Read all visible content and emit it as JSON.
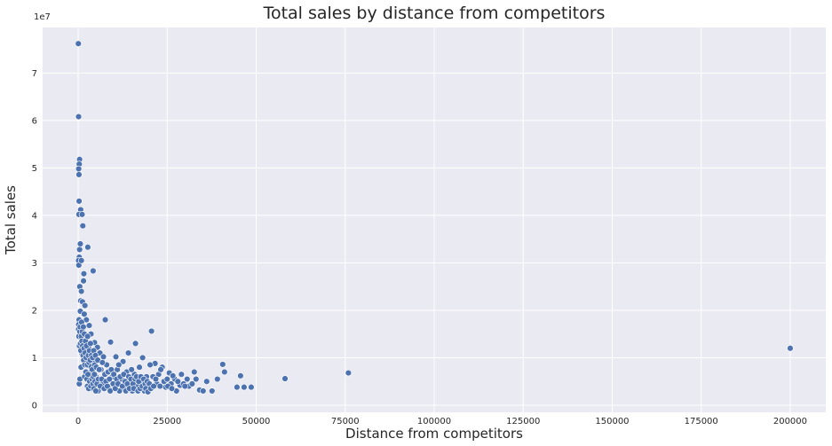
{
  "chart_data": {
    "type": "scatter",
    "title": "Total sales by distance from competitors",
    "xlabel": "Distance from competitors",
    "ylabel": "Total sales",
    "y_offset_label": "1e7",
    "xlim": [
      -9990,
      209990
    ],
    "ylim": [
      -0.15,
      7.96
    ],
    "y_unit_multiplier": 10000000,
    "xticks": [
      0,
      25000,
      50000,
      75000,
      100000,
      125000,
      150000,
      175000,
      200000
    ],
    "yticks": [
      0,
      1,
      2,
      3,
      4,
      5,
      6,
      7
    ],
    "grid": true,
    "background": "#eaeaf2",
    "grid_color": "#ffffff",
    "marker_color": "#4c72b0",
    "marker_edge": "#ffffff",
    "points": [
      [
        40,
        7.62
      ],
      [
        120,
        6.08
      ],
      [
        400,
        5.18
      ],
      [
        300,
        5.08
      ],
      [
        140,
        4.98
      ],
      [
        220,
        4.86
      ],
      [
        260,
        4.3
      ],
      [
        700,
        4.12
      ],
      [
        200,
        4.02
      ],
      [
        1100,
        4.02
      ],
      [
        1300,
        3.78
      ],
      [
        2700,
        3.33
      ],
      [
        600,
        3.4
      ],
      [
        400,
        3.28
      ],
      [
        300,
        3.12
      ],
      [
        100,
        3.05
      ],
      [
        180,
        2.95
      ],
      [
        900,
        3.05
      ],
      [
        1600,
        2.77
      ],
      [
        4200,
        2.83
      ],
      [
        1500,
        2.62
      ],
      [
        450,
        2.5
      ],
      [
        900,
        2.4
      ],
      [
        700,
        2.2
      ],
      [
        1200,
        2.18
      ],
      [
        1900,
        2.1
      ],
      [
        600,
        1.98
      ],
      [
        250,
        1.8
      ],
      [
        1700,
        1.92
      ],
      [
        2300,
        1.8
      ],
      [
        7600,
        1.8
      ],
      [
        3100,
        1.68
      ],
      [
        3600,
        1.5
      ],
      [
        4600,
        1.32
      ],
      [
        5400,
        1.22
      ],
      [
        6100,
        1.1
      ],
      [
        7100,
        1.02
      ],
      [
        9100,
        1.33
      ],
      [
        10600,
        1.02
      ],
      [
        12600,
        0.92
      ],
      [
        14100,
        1.1
      ],
      [
        16100,
        1.3
      ],
      [
        18100,
        1.0
      ],
      [
        20600,
        1.56
      ],
      [
        21600,
        0.88
      ],
      [
        23600,
        0.8
      ],
      [
        25600,
        0.68
      ],
      [
        27100,
        0.55
      ],
      [
        28600,
        0.42
      ],
      [
        30600,
        0.55
      ],
      [
        32600,
        0.7
      ],
      [
        34100,
        0.32
      ],
      [
        36100,
        0.5
      ],
      [
        37600,
        0.3
      ],
      [
        39100,
        0.55
      ],
      [
        40600,
        0.86
      ],
      [
        41100,
        0.7
      ],
      [
        44600,
        0.38
      ],
      [
        45600,
        0.62
      ],
      [
        46600,
        0.38
      ],
      [
        48600,
        0.38
      ],
      [
        58100,
        0.56
      ],
      [
        75900,
        0.68
      ],
      [
        200000,
        1.2
      ],
      [
        300,
        0.45
      ],
      [
        500,
        0.55
      ],
      [
        800,
        0.8
      ],
      [
        1000,
        1.1
      ],
      [
        1400,
        1.4
      ],
      [
        1800,
        0.6
      ],
      [
        2200,
        0.9
      ],
      [
        2600,
        0.4
      ],
      [
        3000,
        1.2
      ],
      [
        3400,
        0.7
      ],
      [
        3800,
        0.35
      ],
      [
        4400,
        0.9
      ],
      [
        5000,
        0.6
      ],
      [
        5600,
        0.3
      ],
      [
        6400,
        0.75
      ],
      [
        7000,
        0.45
      ],
      [
        8000,
        0.85
      ],
      [
        8600,
        0.35
      ],
      [
        9600,
        0.6
      ],
      [
        10200,
        0.4
      ],
      [
        11000,
        0.75
      ],
      [
        11600,
        0.3
      ],
      [
        12200,
        0.55
      ],
      [
        13000,
        0.35
      ],
      [
        13600,
        0.7
      ],
      [
        14600,
        0.45
      ],
      [
        15200,
        0.3
      ],
      [
        15800,
        0.65
      ],
      [
        16600,
        0.4
      ],
      [
        17200,
        0.8
      ],
      [
        17800,
        0.5
      ],
      [
        18600,
        0.3
      ],
      [
        19200,
        0.6
      ],
      [
        19800,
        0.4
      ],
      [
        20200,
        0.85
      ],
      [
        22100,
        0.45
      ],
      [
        22600,
        0.65
      ],
      [
        24100,
        0.5
      ],
      [
        24600,
        0.38
      ],
      [
        26100,
        0.45
      ],
      [
        26600,
        0.62
      ],
      [
        27600,
        0.3
      ],
      [
        29600,
        0.45
      ],
      [
        31100,
        0.4
      ],
      [
        33100,
        0.55
      ],
      [
        35100,
        0.3
      ],
      [
        100,
        1.6
      ],
      [
        150,
        1.7
      ],
      [
        200,
        1.45
      ],
      [
        350,
        1.25
      ],
      [
        450,
        1.55
      ],
      [
        550,
        1.65
      ],
      [
        650,
        1.3
      ],
      [
        750,
        1.15
      ],
      [
        850,
        1.45
      ],
      [
        950,
        1.75
      ],
      [
        1050,
        1.35
      ],
      [
        1150,
        1.55
      ],
      [
        1250,
        1.25
      ],
      [
        1350,
        1.05
      ],
      [
        1450,
        1.65
      ],
      [
        1550,
        0.95
      ],
      [
        1650,
        1.2
      ],
      [
        1750,
        1.5
      ],
      [
        1850,
        0.85
      ],
      [
        1950,
        1.1
      ],
      [
        2050,
        1.35
      ],
      [
        2150,
        0.7
      ],
      [
        2250,
        1.0
      ],
      [
        2350,
        1.25
      ],
      [
        2450,
        0.55
      ],
      [
        2550,
        0.85
      ],
      [
        2650,
        1.45
      ],
      [
        2750,
        0.65
      ],
      [
        2850,
        1.05
      ],
      [
        2950,
        0.35
      ],
      [
        3050,
        0.9
      ],
      [
        3150,
        1.15
      ],
      [
        3250,
        0.5
      ],
      [
        3350,
        0.95
      ],
      [
        3450,
        1.3
      ],
      [
        3550,
        0.4
      ],
      [
        3650,
        0.8
      ],
      [
        3750,
        1.05
      ],
      [
        3850,
        0.55
      ],
      [
        3950,
        0.75
      ],
      [
        4050,
        1.0
      ],
      [
        4150,
        0.45
      ],
      [
        4250,
        0.6
      ],
      [
        4350,
        1.15
      ],
      [
        4450,
        0.35
      ],
      [
        4550,
        0.65
      ],
      [
        4650,
        0.85
      ],
      [
        4750,
        0.5
      ],
      [
        4850,
        1.05
      ],
      [
        4950,
        0.3
      ],
      [
        5100,
        0.8
      ],
      [
        5300,
        0.45
      ],
      [
        5500,
        0.95
      ],
      [
        5700,
        0.55
      ],
      [
        5900,
        0.75
      ],
      [
        6200,
        0.4
      ],
      [
        6600,
        0.55
      ],
      [
        6800,
        0.9
      ],
      [
        7300,
        0.35
      ],
      [
        7500,
        0.65
      ],
      [
        7800,
        0.5
      ],
      [
        8200,
        0.4
      ],
      [
        8400,
        0.7
      ],
      [
        8800,
        0.55
      ],
      [
        9000,
        0.3
      ],
      [
        9300,
        0.75
      ],
      [
        9800,
        0.45
      ],
      [
        10000,
        0.65
      ],
      [
        10400,
        0.35
      ],
      [
        10800,
        0.55
      ],
      [
        11200,
        0.45
      ],
      [
        11400,
        0.85
      ],
      [
        11800,
        0.6
      ],
      [
        12400,
        0.4
      ],
      [
        12800,
        0.65
      ],
      [
        13200,
        0.5
      ],
      [
        13400,
        0.3
      ],
      [
        13800,
        0.45
      ],
      [
        14200,
        0.6
      ],
      [
        14400,
        0.35
      ],
      [
        14800,
        0.55
      ],
      [
        15000,
        0.75
      ],
      [
        15400,
        0.45
      ],
      [
        15600,
        0.35
      ],
      [
        16000,
        0.55
      ],
      [
        16400,
        0.6
      ],
      [
        16800,
        0.3
      ],
      [
        17000,
        0.5
      ],
      [
        17400,
        0.35
      ],
      [
        17600,
        0.6
      ],
      [
        18000,
        0.4
      ],
      [
        18400,
        0.55
      ],
      [
        18800,
        0.45
      ],
      [
        19000,
        0.35
      ],
      [
        19400,
        0.5
      ],
      [
        19600,
        0.28
      ],
      [
        20000,
        0.45
      ],
      [
        20400,
        0.35
      ],
      [
        21000,
        0.6
      ],
      [
        21200,
        0.4
      ],
      [
        21800,
        0.55
      ],
      [
        23000,
        0.4
      ],
      [
        23200,
        0.75
      ],
      [
        25000,
        0.55
      ],
      [
        25200,
        0.4
      ],
      [
        26300,
        0.35
      ],
      [
        28000,
        0.5
      ],
      [
        29000,
        0.65
      ],
      [
        30000,
        0.4
      ],
      [
        32000,
        0.45
      ]
    ]
  }
}
